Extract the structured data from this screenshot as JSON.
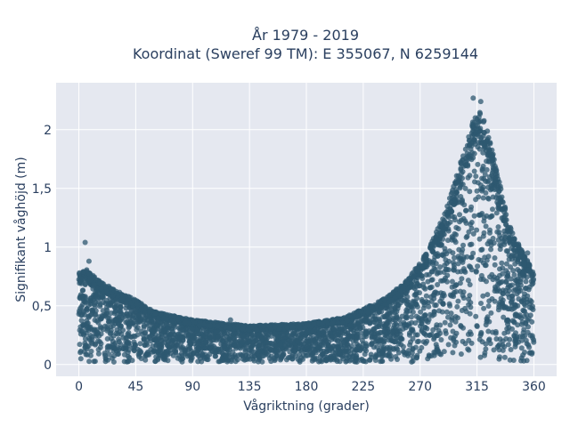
{
  "colors": {
    "marker": "#2e5870",
    "plot_bg": "#e5e8f0",
    "grid": "#ffffff",
    "text": "#2a3f5f"
  },
  "chart_data": {
    "type": "scatter",
    "title": [
      "År 1979 - 2019",
      "Koordinat (Sweref 99 TM): E 355067, N 6259144"
    ],
    "xlabel": "Vågriktning (grader)",
    "ylabel": "Signifikant våghöjd (m)",
    "xlim": [
      -18,
      378
    ],
    "ylim": [
      -0.1,
      2.4
    ],
    "xticks": [
      0,
      45,
      90,
      135,
      180,
      225,
      270,
      315,
      360
    ],
    "xtick_labels": [
      "0",
      "45",
      "90",
      "135",
      "180",
      "225",
      "270",
      "315",
      "360"
    ],
    "yticks": [
      0,
      0.5,
      1,
      1.5,
      2
    ],
    "ytick_labels": [
      "0",
      "0,5",
      "1",
      "1,5",
      "2"
    ],
    "grid": true,
    "legend": "none",
    "envelope_upper": [
      {
        "x": 0,
        "y": 0.78
      },
      {
        "x": 5,
        "y": 0.82
      },
      {
        "x": 15,
        "y": 0.72
      },
      {
        "x": 30,
        "y": 0.63
      },
      {
        "x": 45,
        "y": 0.55
      },
      {
        "x": 60,
        "y": 0.45
      },
      {
        "x": 90,
        "y": 0.38
      },
      {
        "x": 135,
        "y": 0.33
      },
      {
        "x": 180,
        "y": 0.35
      },
      {
        "x": 210,
        "y": 0.4
      },
      {
        "x": 240,
        "y": 0.55
      },
      {
        "x": 260,
        "y": 0.72
      },
      {
        "x": 275,
        "y": 0.95
      },
      {
        "x": 290,
        "y": 1.3
      },
      {
        "x": 300,
        "y": 1.65
      },
      {
        "x": 310,
        "y": 2.0
      },
      {
        "x": 315,
        "y": 2.2
      },
      {
        "x": 322,
        "y": 2.05
      },
      {
        "x": 330,
        "y": 1.7
      },
      {
        "x": 340,
        "y": 1.2
      },
      {
        "x": 350,
        "y": 0.98
      },
      {
        "x": 360,
        "y": 0.8
      }
    ],
    "outliers": [
      {
        "x": 5,
        "y": 1.04
      },
      {
        "x": 8,
        "y": 0.88
      },
      {
        "x": 312,
        "y": 2.27
      },
      {
        "x": 318,
        "y": 2.24
      },
      {
        "x": 348,
        "y": 1.0
      },
      {
        "x": 355,
        "y": 0.95
      },
      {
        "x": 250,
        "y": 0.48
      },
      {
        "x": 120,
        "y": 0.38
      }
    ],
    "y_min": 0.02
  }
}
